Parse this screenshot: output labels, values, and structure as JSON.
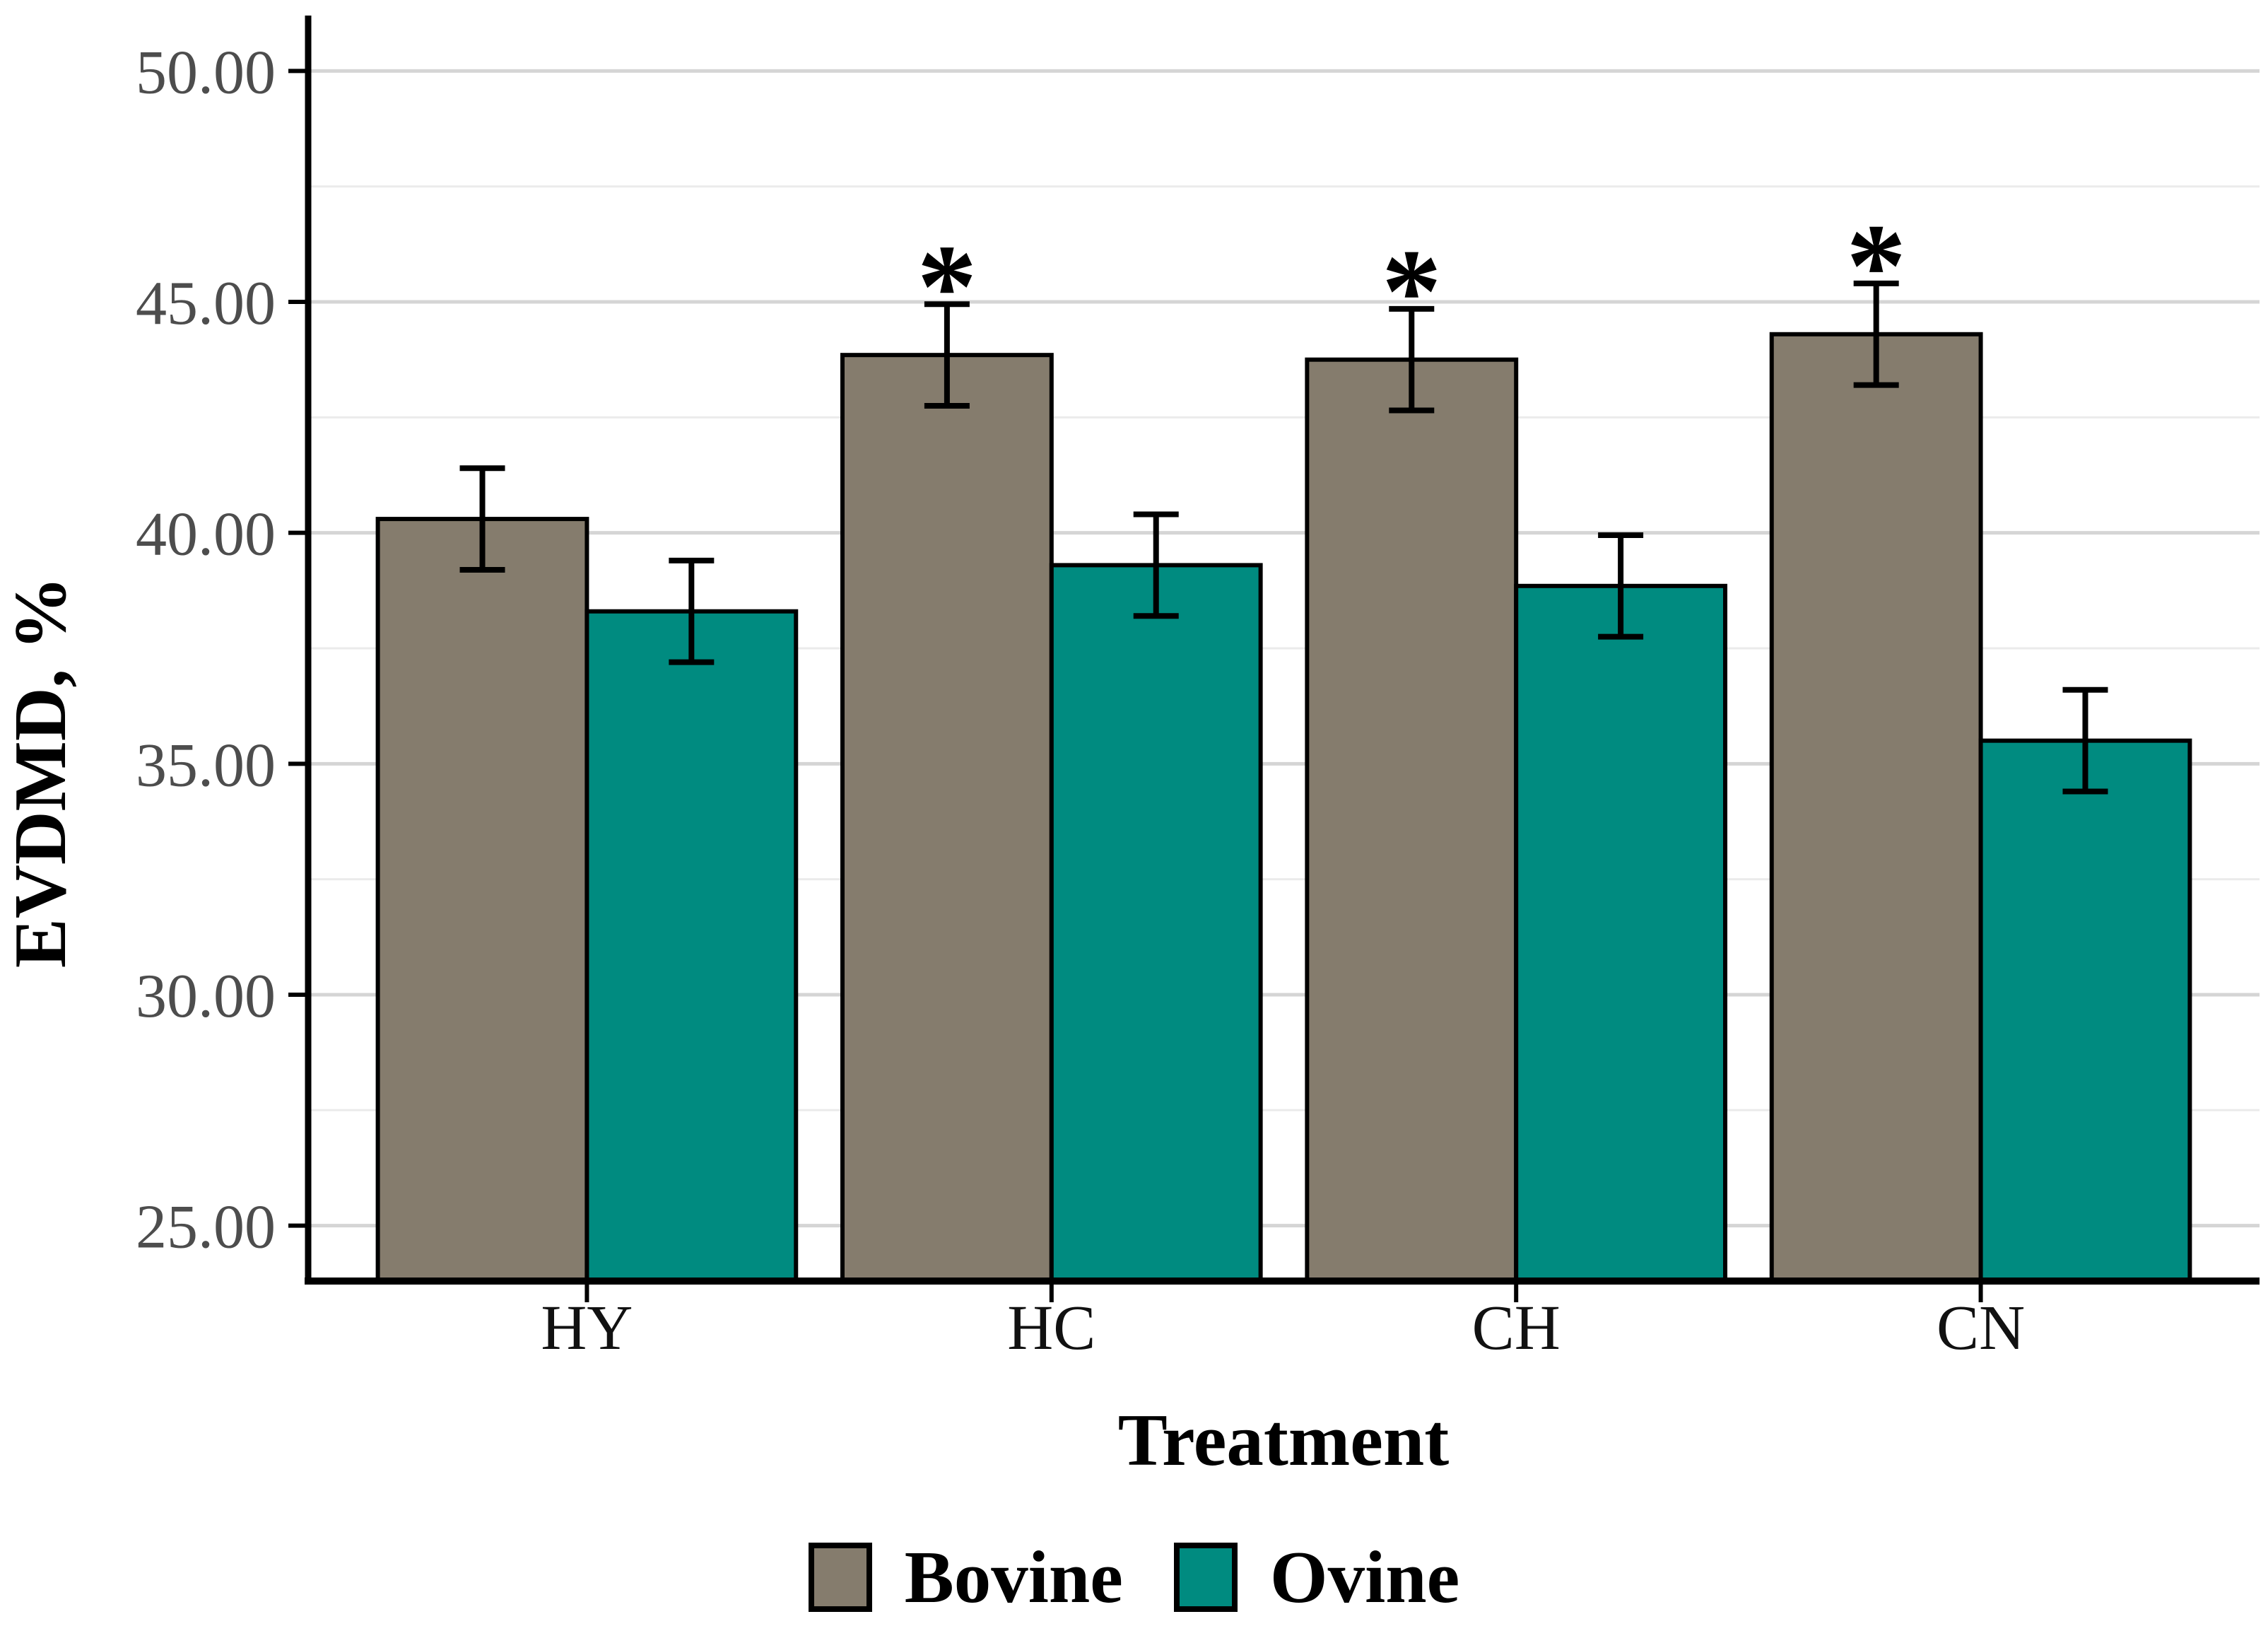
{
  "chart_data": {
    "type": "bar",
    "title": "",
    "xlabel": "Treatment",
    "ylabel": "EVDMD, %",
    "categories": [
      "HY",
      "HC",
      "CH",
      "CN"
    ],
    "series": [
      {
        "name": "Bovine",
        "color": "#857C6D",
        "values": [
          40.3,
          43.85,
          43.75,
          44.3
        ],
        "errors": [
          1.1,
          1.1,
          1.1,
          1.1
        ],
        "significance": [
          "",
          "*",
          "*",
          "*"
        ]
      },
      {
        "name": "Ovine",
        "color": "#008B80",
        "values": [
          38.3,
          39.3,
          38.85,
          35.5
        ],
        "errors": [
          1.1,
          1.1,
          1.1,
          1.1
        ],
        "significance": [
          "",
          "",
          "",
          ""
        ]
      }
    ],
    "y_axis": {
      "range": [
        23.8,
        51.2
      ],
      "major_ticks": [
        25,
        30,
        35,
        40,
        45,
        50
      ],
      "tick_labels": [
        "25.00",
        "30.00",
        "35.00",
        "40.00",
        "45.00",
        "50.00"
      ],
      "minor_ticks": [
        27.5,
        32.5,
        37.5,
        42.5,
        47.5
      ]
    },
    "grid": {
      "horizontal_major": true,
      "horizontal_minor": true,
      "vertical": false
    },
    "legend": {
      "position": "bottom",
      "entries": [
        "Bovine",
        "Ovine"
      ]
    },
    "bar_outline_color": "#000000",
    "error_bar_color": "#000000",
    "significance_symbol": "*"
  },
  "colors": {
    "background": "#FFFFFF",
    "axis": "#000000",
    "grid_major": "#D5D5D5",
    "grid_minor": "#EBEBEB",
    "y_tick_label": "#4D4D4D",
    "x_tick_label": "#111111",
    "title_text": "#000000"
  }
}
